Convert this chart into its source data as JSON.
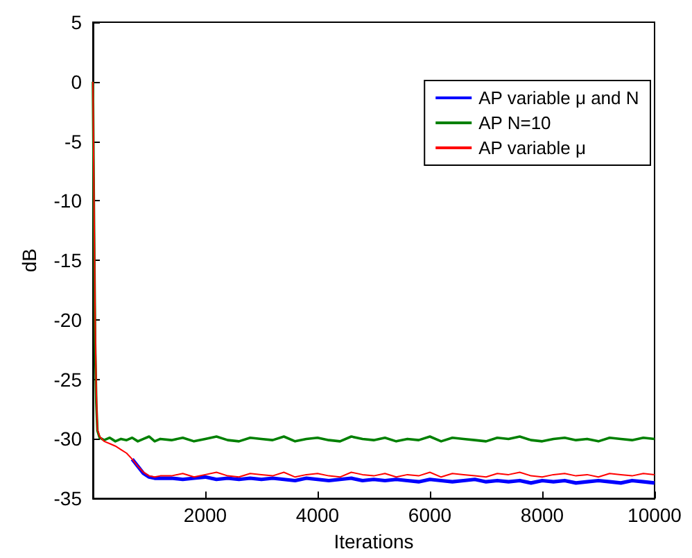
{
  "chart_data": {
    "type": "line",
    "xlabel": "Iterations",
    "ylabel": "dB",
    "x": [
      0,
      20,
      40,
      60,
      80,
      120,
      200,
      300,
      400,
      500,
      600,
      700,
      800,
      900,
      1000,
      1100,
      1200,
      1400,
      1600,
      1800,
      2000,
      2200,
      2400,
      2600,
      2800,
      3000,
      3200,
      3400,
      3600,
      3800,
      4000,
      4200,
      4400,
      4600,
      4800,
      5000,
      5200,
      5400,
      5600,
      5800,
      6000,
      6200,
      6400,
      6600,
      6800,
      7000,
      7200,
      7400,
      7600,
      7800,
      8000,
      8200,
      8400,
      8600,
      8800,
      9000,
      9200,
      9400,
      9600,
      9800,
      10000
    ],
    "series": [
      {
        "name": "AP variable μ and N",
        "color": "#0000ff",
        "values": [
          null,
          null,
          null,
          null,
          null,
          null,
          null,
          null,
          null,
          null,
          null,
          -31.7,
          -32.3,
          -32.9,
          -33.2,
          -33.3,
          -33.3,
          -33.3,
          -33.4,
          -33.3,
          -33.2,
          -33.4,
          -33.3,
          -33.4,
          -33.3,
          -33.4,
          -33.3,
          -33.4,
          -33.5,
          -33.3,
          -33.4,
          -33.5,
          -33.4,
          -33.3,
          -33.5,
          -33.4,
          -33.5,
          -33.4,
          -33.5,
          -33.6,
          -33.4,
          -33.5,
          -33.6,
          -33.5,
          -33.4,
          -33.6,
          -33.5,
          -33.6,
          -33.5,
          -33.7,
          -33.5,
          -33.6,
          -33.5,
          -33.7,
          -33.6,
          -33.5,
          -33.6,
          -33.7,
          -33.5,
          -33.6,
          -33.7
        ]
      },
      {
        "name": "AP N=10",
        "color": "#008000",
        "values": [
          0,
          -12,
          -22,
          -27,
          -29.3,
          -29.9,
          -30.1,
          -29.9,
          -30.2,
          -30.0,
          -30.1,
          -29.9,
          -30.2,
          -30.0,
          -29.8,
          -30.2,
          -30.0,
          -30.1,
          -29.9,
          -30.2,
          -30.0,
          -29.8,
          -30.1,
          -30.2,
          -29.9,
          -30.0,
          -30.1,
          -29.8,
          -30.2,
          -30.0,
          -29.9,
          -30.1,
          -30.2,
          -29.8,
          -30.0,
          -30.1,
          -29.9,
          -30.2,
          -30.0,
          -30.1,
          -29.8,
          -30.2,
          -29.9,
          -30.0,
          -30.1,
          -30.2,
          -29.9,
          -30.0,
          -29.8,
          -30.1,
          -30.2,
          -30.0,
          -29.9,
          -30.1,
          -30.0,
          -30.2,
          -29.9,
          -30.0,
          -30.1,
          -29.9,
          -30.0
        ]
      },
      {
        "name": "AP variable μ",
        "color": "#ff0000",
        "values": [
          0,
          -10,
          -20,
          -26,
          -29.2,
          -29.8,
          -30.2,
          -30.4,
          -30.6,
          -30.9,
          -31.2,
          -31.7,
          -32.3,
          -32.8,
          -33.1,
          -33.2,
          -33.1,
          -33.1,
          -32.9,
          -33.2,
          -33.0,
          -32.8,
          -33.1,
          -33.2,
          -32.9,
          -33.0,
          -33.1,
          -32.8,
          -33.2,
          -33.0,
          -32.9,
          -33.1,
          -33.2,
          -32.8,
          -33.0,
          -33.1,
          -32.9,
          -33.2,
          -33.0,
          -33.1,
          -32.8,
          -33.2,
          -32.9,
          -33.0,
          -33.1,
          -33.2,
          -32.9,
          -33.0,
          -32.8,
          -33.1,
          -33.2,
          -33.0,
          -32.9,
          -33.1,
          -33.0,
          -33.2,
          -32.9,
          -33.0,
          -33.1,
          -32.9,
          -33.0
        ]
      }
    ],
    "xlim": [
      0,
      10000
    ],
    "xticks": [
      2000,
      4000,
      6000,
      8000,
      10000
    ],
    "ylim": [
      -35,
      5
    ],
    "yticks": [
      -35,
      -30,
      -25,
      -20,
      -15,
      -10,
      -5,
      0,
      5
    ],
    "legend": "top right",
    "grid": false,
    "marker": "none",
    "line_style": "solid"
  }
}
